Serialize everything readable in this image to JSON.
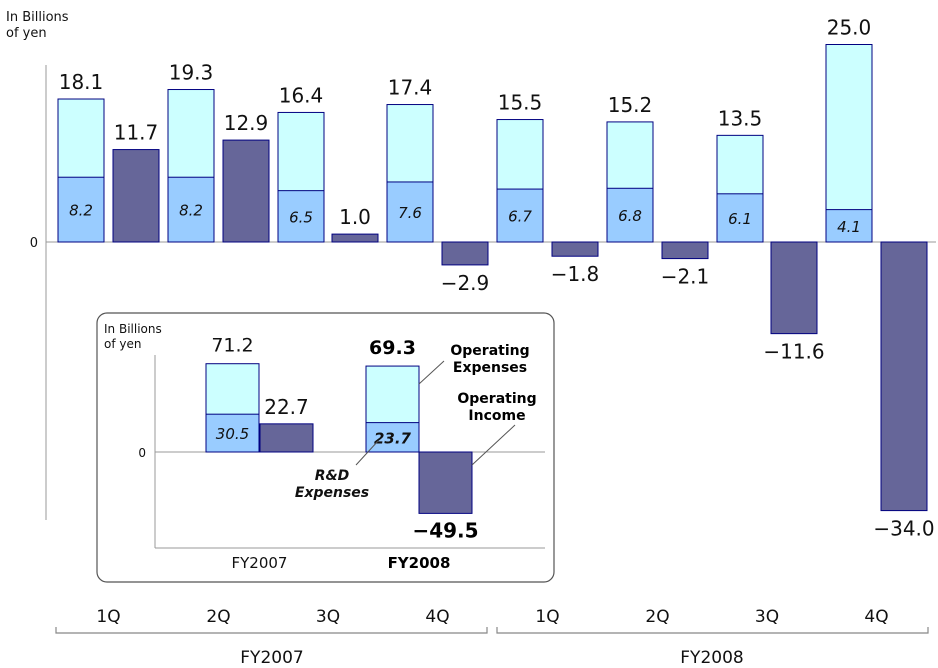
{
  "chart_data": [
    {
      "type": "bar",
      "ylabel": "In Billions of yen",
      "ylabel_lines": [
        "In Billions",
        "of yen"
      ],
      "zero_label": "0",
      "categories": [
        "1Q",
        "2Q",
        "3Q",
        "4Q",
        "1Q",
        "2Q",
        "3Q",
        "4Q"
      ],
      "groups": [
        "FY2007",
        "FY2008"
      ],
      "series": [
        {
          "name": "Operating Expenses",
          "values": [
            18.1,
            19.3,
            16.4,
            17.4,
            15.5,
            15.2,
            13.5,
            25.0
          ],
          "labels": [
            "18.1",
            "19.3",
            "16.4",
            "17.4",
            "15.5",
            "15.2",
            "13.5",
            "25.0"
          ]
        },
        {
          "name": "R&D Expenses",
          "values": [
            8.2,
            8.2,
            6.5,
            7.6,
            6.7,
            6.8,
            6.1,
            4.1
          ],
          "labels": [
            "8.2",
            "8.2",
            "6.5",
            "7.6",
            "6.7",
            "6.8",
            "6.1",
            "4.1"
          ]
        },
        {
          "name": "Operating Income",
          "values": [
            11.7,
            12.9,
            1.0,
            -2.9,
            -1.8,
            -2.1,
            -11.6,
            -34.0
          ],
          "labels": [
            "11.7",
            "12.9",
            "1.0",
            "−2.9",
            "−1.8",
            "−2.1",
            "−11.6",
            "−34.0"
          ]
        }
      ],
      "colors": {
        "expenses": "#ccffff",
        "rnd": "#99ccff",
        "income": "#666699",
        "outline": "#000080"
      },
      "grid": false
    },
    {
      "type": "bar",
      "ylabel": "In Billions of yen",
      "ylabel_lines": [
        "In Billions",
        "of yen"
      ],
      "zero_label": "0",
      "categories": [
        "FY2007",
        "FY2008"
      ],
      "series": [
        {
          "name": "Operating Expenses",
          "values": [
            71.2,
            69.3
          ],
          "labels": [
            "71.2",
            "69.3"
          ]
        },
        {
          "name": "R&D Expenses",
          "values": [
            30.5,
            23.7
          ],
          "labels": [
            "30.5",
            "23.7"
          ]
        },
        {
          "name": "Operating Income",
          "values": [
            22.7,
            -49.5
          ],
          "labels": [
            "22.7",
            "−49.5"
          ]
        }
      ],
      "annotations": {
        "expenses_lines": [
          "Operating",
          "Expenses"
        ],
        "income_lines": [
          "Operating",
          "Income"
        ],
        "rnd_lines": [
          "R&D",
          "Expenses"
        ]
      },
      "grid": false
    }
  ]
}
